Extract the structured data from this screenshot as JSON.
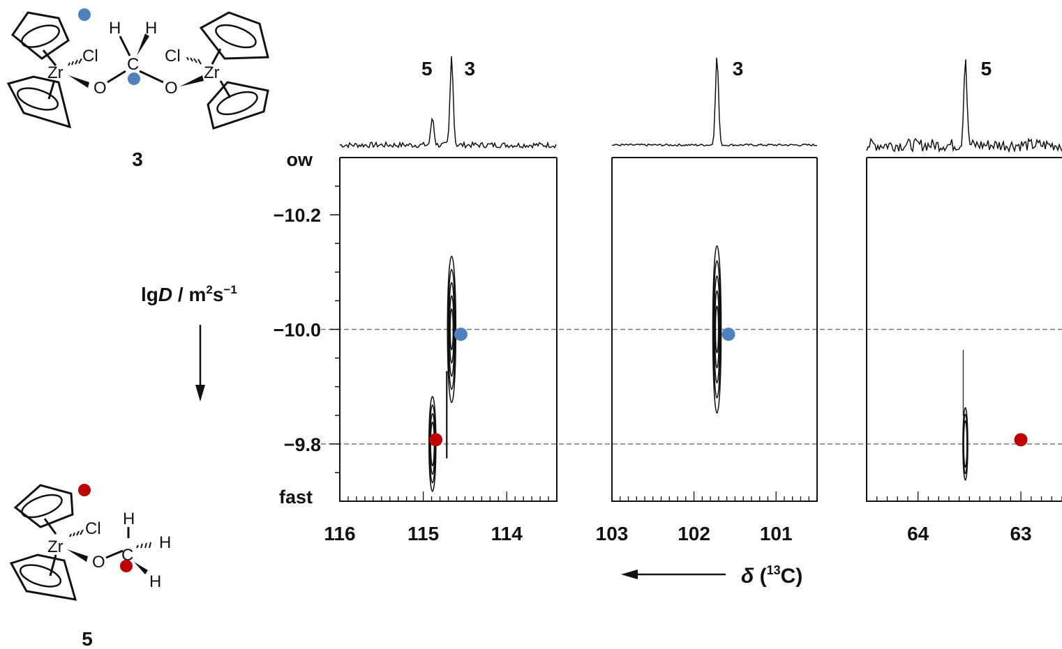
{
  "compounds": {
    "c3": {
      "number": "3",
      "atoms": {
        "h1": "H",
        "h2": "H",
        "c": "C",
        "cl1": "Cl",
        "cl2": "Cl",
        "zr1": "Zr",
        "zr2": "Zr",
        "o1": "O",
        "o2": "O"
      },
      "marker_color": "#4f81bd"
    },
    "c5": {
      "number": "5",
      "atoms": {
        "zr": "Zr",
        "cl": "Cl",
        "o": "O",
        "c": "C",
        "h1": "H",
        "h2": "H",
        "h3": "H"
      },
      "marker_color": "#c00000"
    }
  },
  "chart_data": {
    "type": "scatter",
    "title": "",
    "ylabel": {
      "pre": "lg",
      "italic": "D",
      "post": " / m",
      "sup1": "2",
      "mid": "s",
      "sup2": "−1"
    },
    "y_top_label": "ow",
    "y_bottom_label": "fast",
    "ylim": [
      -10.3,
      -9.7
    ],
    "yticks": [
      -10.2,
      -10.0,
      -9.8
    ],
    "ytick_labels": [
      "−10.2",
      "−10.0",
      "−9.8"
    ],
    "xlabel": {
      "delta": "δ",
      "open": " (",
      "sup": "13",
      "rest": "C)"
    },
    "x_direction_arrow": "leftward",
    "y_direction_arrow": "downward",
    "reference_lines": [
      -10.0,
      -9.8
    ],
    "panels": [
      {
        "name": "p1",
        "xlim": [
          116.0,
          113.4
        ],
        "xticks": [
          116,
          115,
          114
        ],
        "xtick_labels": [
          "116",
          "115",
          "114"
        ],
        "peaks": [
          {
            "label": "5",
            "shift": 114.89
          },
          {
            "label": "3",
            "shift": 114.66
          }
        ],
        "cross_peaks": [
          {
            "compound": "5",
            "shift": 114.89,
            "lgD": -9.8
          },
          {
            "compound": "3",
            "shift": 114.66,
            "lgD": -10.0
          }
        ]
      },
      {
        "name": "p2",
        "xlim": [
          103.0,
          100.5
        ],
        "xticks": [
          103,
          102,
          101
        ],
        "xtick_labels": [
          "103",
          "102",
          "101"
        ],
        "peaks": [
          {
            "label": "3",
            "shift": 101.72
          }
        ],
        "cross_peaks": [
          {
            "compound": "3",
            "shift": 101.72,
            "lgD": -10.0
          }
        ]
      },
      {
        "name": "p3",
        "xlim": [
          64.5,
          62.6
        ],
        "xticks": [
          64,
          63
        ],
        "xtick_labels": [
          "64",
          "63"
        ],
        "peaks": [
          {
            "label": "5",
            "shift": 63.54
          }
        ],
        "cross_peaks": [
          {
            "compound": "5",
            "shift": 63.54,
            "lgD": -9.8
          }
        ]
      }
    ],
    "markers": [
      {
        "panel": "p1",
        "compound": "3",
        "shift": 114.55,
        "lgD": -10.0,
        "color": "#4f81bd"
      },
      {
        "panel": "p1",
        "compound": "5",
        "shift": 114.85,
        "lgD": -9.8,
        "color": "#c00000"
      },
      {
        "panel": "p2",
        "compound": "3",
        "shift": 101.58,
        "lgD": -10.0,
        "color": "#4f81bd"
      },
      {
        "panel": "p3",
        "compound": "5",
        "shift": 63.0,
        "lgD": -9.8,
        "color": "#c00000"
      }
    ]
  }
}
